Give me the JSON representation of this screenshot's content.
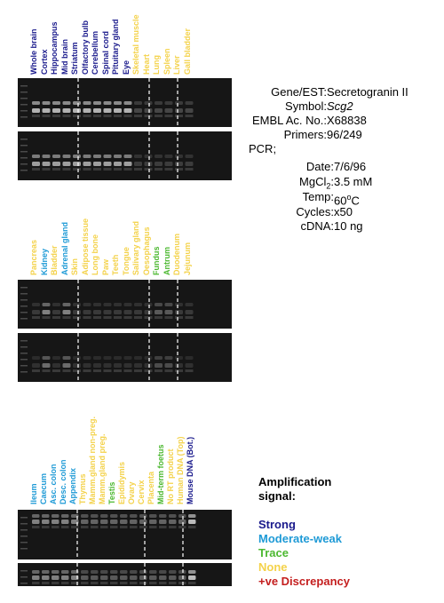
{
  "colors": {
    "strong": "#1a1a8c",
    "moderate_weak": "#1e9ad6",
    "trace": "#4cb830",
    "none": "#f4d24a",
    "discrepancy": "#c41e1e"
  },
  "panels": [
    {
      "lanes": [
        {
          "label": "Whole brain",
          "level": "strong"
        },
        {
          "label": "Cortex",
          "level": "strong"
        },
        {
          "label": "Hippocampus",
          "level": "strong"
        },
        {
          "label": "Mid brain",
          "level": "strong"
        },
        {
          "label": "Striatum",
          "level": "strong"
        },
        {
          "label": "Olfactory bulb",
          "level": "strong"
        },
        {
          "label": "Cerebellum",
          "level": "strong"
        },
        {
          "label": "Spinal cord",
          "level": "strong"
        },
        {
          "label": "Pituitary gland",
          "level": "strong"
        },
        {
          "label": "Eye",
          "level": "strong"
        },
        {
          "label": "Skeletal muscle",
          "level": "none"
        },
        {
          "label": "Heart",
          "level": "none"
        },
        {
          "label": "Lung",
          "level": "none"
        },
        {
          "label": "Spleen",
          "level": "none"
        },
        {
          "label": "Liver",
          "level": "none"
        },
        {
          "label": "Gall bladder",
          "level": "none"
        }
      ]
    },
    {
      "lanes": [
        {
          "label": "Pancreas",
          "level": "none"
        },
        {
          "label": "Kidney",
          "level": "moderate_weak"
        },
        {
          "label": "Bladder",
          "level": "none"
        },
        {
          "label": "Adrenal gland",
          "level": "moderate_weak"
        },
        {
          "label": "Skin",
          "level": "none"
        },
        {
          "label": "Adipose tissue",
          "level": "none"
        },
        {
          "label": "Long bone",
          "level": "none"
        },
        {
          "label": "Paw",
          "level": "none"
        },
        {
          "label": "Teeth",
          "level": "none"
        },
        {
          "label": "Tongue",
          "level": "none"
        },
        {
          "label": "Salivary gland",
          "level": "none"
        },
        {
          "label": "Oesophagus",
          "level": "none"
        },
        {
          "label": "Fundus",
          "level": "trace"
        },
        {
          "label": "Antrum",
          "level": "trace"
        },
        {
          "label": "Duodenum",
          "level": "none"
        },
        {
          "label": "Jejunum",
          "level": "none"
        }
      ]
    },
    {
      "lanes": [
        {
          "label": "Ileum",
          "level": "moderate_weak"
        },
        {
          "label": "Caecum",
          "level": "moderate_weak"
        },
        {
          "label": "Asc. colon",
          "level": "moderate_weak"
        },
        {
          "label": "Desc. colon",
          "level": "moderate_weak"
        },
        {
          "label": "Appendix",
          "level": "moderate_weak"
        },
        {
          "label": "Thymus",
          "level": "none"
        },
        {
          "label": "Mamm.gland non-preg.",
          "level": "none"
        },
        {
          "label": "Mamm.gland preg.",
          "level": "none"
        },
        {
          "label": "Testis",
          "level": "trace"
        },
        {
          "label": "Epididymis",
          "level": "none"
        },
        {
          "label": "Ovary",
          "level": "none"
        },
        {
          "label": "Cervix",
          "level": "none"
        },
        {
          "label": "Placenta",
          "level": "none"
        },
        {
          "label": "Mid-term foetus",
          "level": "trace"
        },
        {
          "label": "No RT product",
          "level": "none"
        },
        {
          "label": "Human DNA (Top)",
          "level": "none"
        },
        {
          "label": "Mouse DNA (Bot.)",
          "level": "strong"
        }
      ]
    }
  ],
  "info": {
    "gene_key": "Gene/EST:",
    "gene_val": "Secretogranin II",
    "symbol_key": "Symbol:",
    "symbol_val": "Scg2",
    "embl_key": "EMBL Ac. No.:",
    "embl_val": "X68838",
    "primers_key": "Primers:",
    "primers_val": "96/249",
    "pcr_label": "PCR;",
    "date_key": "Date:",
    "date_val": "7/6/96",
    "mgcl_key_a": "MgCl",
    "mgcl_key_sub": "2",
    "mgcl_key_b": ":",
    "mgcl_val": "3.5 mM",
    "temp_key": "Temp:",
    "temp_val_a": "60",
    "temp_val_sup": "o",
    "temp_val_b": "C",
    "cycles_key": "Cycles:",
    "cycles_val": "x50",
    "cdna_key": "cDNA:",
    "cdna_val": "10 ng"
  },
  "legend": {
    "title": "Amplification signal:",
    "strong": "Strong",
    "moderate_weak": "Moderate-weak",
    "trace": "Trace",
    "none": "None",
    "discrepancy": "+ve Discrepancy"
  }
}
